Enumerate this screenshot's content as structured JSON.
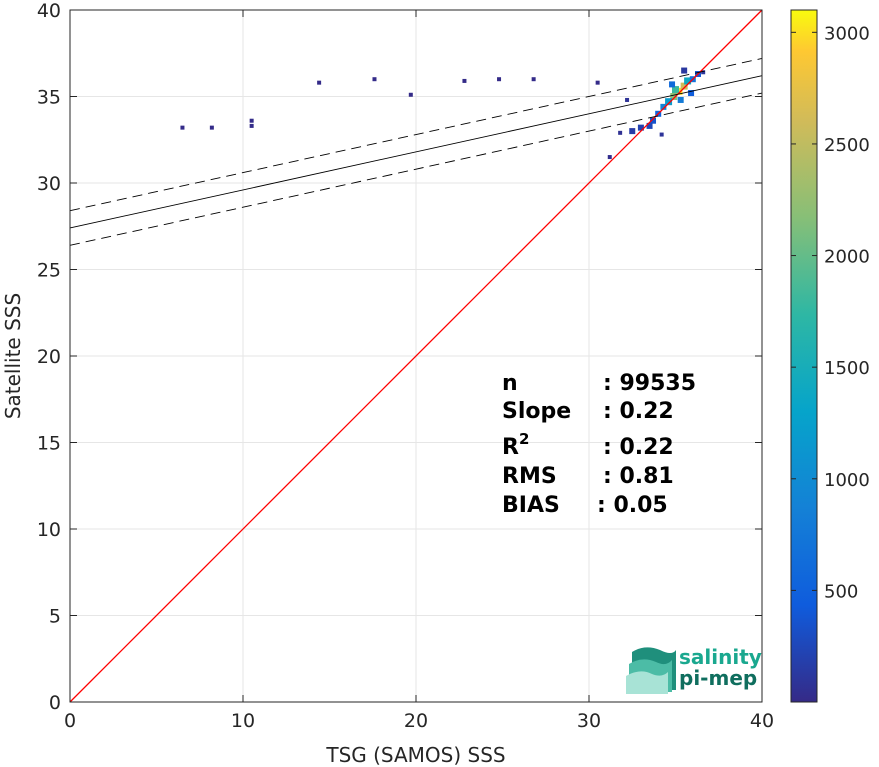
{
  "chart_data": {
    "type": "heatmap",
    "xlabel": "TSG (SAMOS) SSS",
    "ylabel": "Satellite SSS",
    "xlim": [
      0,
      40
    ],
    "ylim": [
      0,
      40
    ],
    "xticks": [
      0,
      10,
      20,
      30,
      40
    ],
    "yticks": [
      0,
      5,
      10,
      15,
      20,
      25,
      30,
      35,
      40
    ],
    "grid": true,
    "colorbar": {
      "range": [
        0,
        3100
      ],
      "ticks": [
        500,
        1000,
        1500,
        2000,
        2500,
        3000
      ],
      "colormap": "parula"
    },
    "reference_line": {
      "name": "1:1",
      "color": "#ff0000",
      "points": [
        [
          0,
          0
        ],
        [
          40,
          40
        ]
      ]
    },
    "fit_line": {
      "intercept": 27.4,
      "slope": 0.22,
      "band": 1.0,
      "color": "#000000"
    },
    "density": [
      {
        "x": 35.2,
        "y": 35.3,
        "count": 3000
      },
      {
        "x": 35.5,
        "y": 35.6,
        "count": 2600
      },
      {
        "x": 34.9,
        "y": 35.0,
        "count": 2200
      },
      {
        "x": 35.0,
        "y": 35.4,
        "count": 1800
      },
      {
        "x": 35.7,
        "y": 35.9,
        "count": 1400
      },
      {
        "x": 34.6,
        "y": 34.7,
        "count": 1200
      },
      {
        "x": 34.3,
        "y": 34.4,
        "count": 900
      },
      {
        "x": 36.0,
        "y": 36.0,
        "count": 700
      },
      {
        "x": 35.3,
        "y": 34.8,
        "count": 800
      },
      {
        "x": 34.8,
        "y": 35.7,
        "count": 600
      },
      {
        "x": 34.0,
        "y": 34.0,
        "count": 500
      },
      {
        "x": 36.3,
        "y": 36.3,
        "count": 400
      },
      {
        "x": 33.7,
        "y": 33.6,
        "count": 350
      },
      {
        "x": 35.9,
        "y": 35.2,
        "count": 450
      },
      {
        "x": 33.5,
        "y": 33.3,
        "count": 250
      },
      {
        "x": 33.0,
        "y": 33.2,
        "count": 200
      },
      {
        "x": 32.5,
        "y": 33.0,
        "count": 150
      },
      {
        "x": 35.5,
        "y": 36.5,
        "count": 120
      },
      {
        "x": 32.2,
        "y": 34.8,
        "count": 80
      },
      {
        "x": 31.8,
        "y": 32.9,
        "count": 60
      },
      {
        "x": 31.2,
        "y": 31.5,
        "count": 30
      },
      {
        "x": 34.2,
        "y": 32.8,
        "count": 90
      },
      {
        "x": 36.6,
        "y": 36.4,
        "count": 100
      },
      {
        "x": 6.5,
        "y": 33.2,
        "count": 10
      },
      {
        "x": 8.2,
        "y": 33.2,
        "count": 10
      },
      {
        "x": 10.5,
        "y": 33.3,
        "count": 15
      },
      {
        "x": 10.5,
        "y": 33.6,
        "count": 10
      },
      {
        "x": 14.4,
        "y": 35.8,
        "count": 8
      },
      {
        "x": 17.6,
        "y": 36.0,
        "count": 8
      },
      {
        "x": 19.7,
        "y": 35.1,
        "count": 6
      },
      {
        "x": 22.8,
        "y": 35.9,
        "count": 6
      },
      {
        "x": 24.8,
        "y": 36.0,
        "count": 6
      },
      {
        "x": 26.8,
        "y": 36.0,
        "count": 8
      },
      {
        "x": 30.5,
        "y": 35.8,
        "count": 10
      }
    ]
  },
  "stats": [
    {
      "label": "n",
      "value": ": 99535"
    },
    {
      "label": "Slope",
      "value": ": 0.22"
    },
    {
      "label": "R",
      "sup": "2",
      "value": ": 0.22"
    },
    {
      "label": "RMS",
      "value": ": 0.81"
    },
    {
      "label": "BIAS",
      "value": ": 0.05"
    }
  ],
  "logo": {
    "line1": "salinity",
    "line2": "pi-mep"
  }
}
